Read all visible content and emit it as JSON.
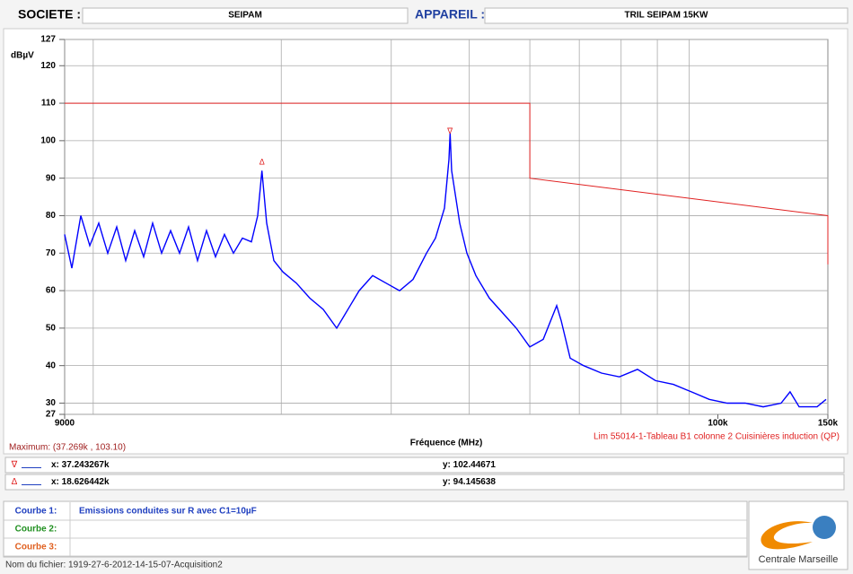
{
  "header": {
    "company_label": "SOCIETE :",
    "company": "SEIPAM",
    "device_label": "APPAREIL :",
    "device": "TRIL SEIPAM 15KW"
  },
  "chart_data": {
    "type": "line",
    "y_unit": "dBµV",
    "x_label": "Fréquence (MHz)",
    "x_scale": "log",
    "xlim": [
      9000,
      150000
    ],
    "ylim": [
      27,
      127
    ],
    "xticks": [
      9000,
      {
        "value": 100000,
        "label": "100k"
      },
      {
        "value": 150000,
        "label": "150k"
      }
    ],
    "xgrid": [
      10000,
      20000,
      30000,
      40000,
      50000,
      60000,
      70000,
      80000,
      90000
    ],
    "yticks": [
      27,
      30,
      40,
      50,
      60,
      70,
      80,
      90,
      100,
      110,
      120,
      127
    ],
    "grid": true,
    "series": [
      {
        "name": "Emissions conduites sur R avec C1=10µF",
        "color": "#0000ff",
        "x": [
          9000,
          9241,
          9553,
          9874,
          10207,
          10550,
          10905,
          11272,
          11651,
          12044,
          12449,
          12868,
          13301,
          13749,
          14212,
          14690,
          15184,
          15696,
          16224,
          16770,
          17335,
          17917,
          18338,
          18626,
          18955,
          19463,
          20120,
          21144,
          22219,
          23350,
          24538,
          25786,
          26654,
          28010,
          29435,
          30932,
          32505,
          34160,
          35309,
          36497,
          37107,
          37269,
          37475,
          38609,
          39645,
          40980,
          43067,
          45258,
          47562,
          49982,
          52527,
          55200,
          56122,
          58011,
          60963,
          65120,
          69562,
          74353,
          79438,
          84872,
          90684,
          96885,
          103518,
          110601,
          118179,
          126252,
          130509,
          134910,
          144153,
          149000
        ],
        "values": [
          75,
          66,
          80,
          72,
          78,
          70,
          77,
          68,
          76,
          69,
          78,
          70,
          76,
          70,
          77,
          68,
          76,
          69,
          75,
          70,
          74,
          73,
          80,
          92,
          78,
          68,
          65,
          62,
          58,
          55,
          50,
          56,
          60,
          64,
          62,
          60,
          63,
          70,
          74,
          82,
          95,
          102,
          92,
          78,
          70,
          64,
          58,
          54,
          50,
          45,
          47,
          56,
          52,
          42,
          40,
          38,
          37,
          39,
          36,
          35,
          33,
          31,
          30,
          30,
          29,
          30,
          33,
          29,
          29,
          31
        ]
      },
      {
        "name": "Lim 55014-1-Tableau B1 colonne 2 Cuisinières induction (QP)",
        "color": "#e02020",
        "x": [
          9000,
          50000,
          50000,
          150000,
          150000
        ],
        "values": [
          110,
          110,
          90,
          80,
          67
        ]
      }
    ],
    "maximum_label": "Maximum: (37.269k , 103.10)",
    "cursors": [
      {
        "symbol": "∇",
        "x": 37243.267,
        "x_label": "x: 37.243267k",
        "y": 102.44671,
        "y_label": "y: 102.44671",
        "color": "#e02020"
      },
      {
        "symbol": "Δ",
        "x": 18626.442,
        "x_label": "x: 18.626442k",
        "y": 94.145638,
        "y_label": "y: 94.145638",
        "color": "#e02020"
      }
    ]
  },
  "curves": [
    {
      "label": "Courbe 1:",
      "color": "#2040c0"
    },
    {
      "label": "Courbe 2:",
      "color": "#209020"
    },
    {
      "label": "Courbe 3:",
      "color": "#e06020"
    }
  ],
  "footer": {
    "filename": "Nom du fichier: 1919-27-6-2012-14-15-07-Acquisition2",
    "logo": "Centrale Marseille"
  }
}
